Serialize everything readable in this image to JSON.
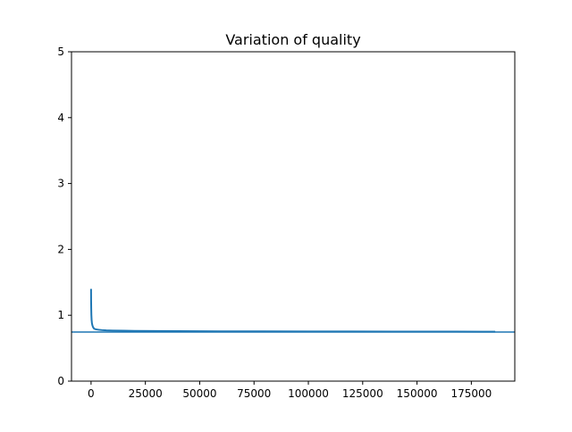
{
  "chart_data": {
    "type": "line",
    "title": "Variation of quality",
    "xlabel": "",
    "ylabel": "",
    "xlim": [
      -9000,
      195000
    ],
    "ylim": [
      0,
      5
    ],
    "x_ticks": [
      0,
      25000,
      50000,
      75000,
      100000,
      125000,
      150000,
      175000
    ],
    "y_ticks": [
      0,
      1,
      2,
      3,
      4,
      5
    ],
    "grid": false,
    "legend": "none",
    "colors": {
      "series": "#1f77b4",
      "axes": "#000000",
      "background": "#ffffff"
    },
    "series": [
      {
        "values_x": [
          0,
          30,
          80,
          150,
          250,
          400,
          600,
          900,
          1300,
          1800,
          2500,
          3500,
          5000,
          7000,
          10000,
          15000,
          20000,
          30000,
          40000,
          60000,
          80000,
          100000,
          120000,
          140000,
          160000,
          180000,
          186000
        ],
        "values_y": [
          1.4,
          1.22,
          1.1,
          1.0,
          0.93,
          0.88,
          0.85,
          0.82,
          0.8,
          0.79,
          0.785,
          0.78,
          0.775,
          0.77,
          0.768,
          0.765,
          0.763,
          0.76,
          0.758,
          0.756,
          0.755,
          0.754,
          0.753,
          0.752,
          0.752,
          0.751,
          0.751
        ]
      }
    ],
    "hlines": [
      {
        "y": 0.745
      }
    ]
  }
}
